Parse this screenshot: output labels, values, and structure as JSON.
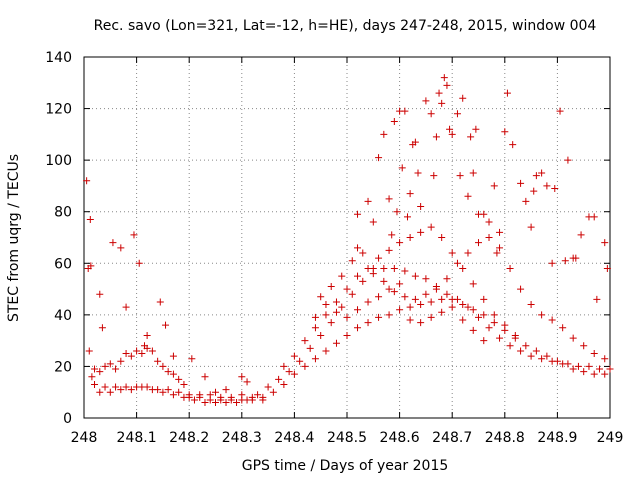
{
  "chart_data": {
    "type": "scatter",
    "title": "Rec. savo (Lon=321, Lat=-12, h=HE), days 247-248, 2015, window 004",
    "xlabel": "GPS time / Days of year 2015",
    "ylabel": "STEC from uqrg / TECUs",
    "xlim": [
      248,
      249
    ],
    "ylim": [
      0,
      140
    ],
    "xticks": [
      "248",
      "248.1",
      "248.2",
      "248.3",
      "248.4",
      "248.5",
      "248.6",
      "248.7",
      "248.8",
      "248.9",
      "249"
    ],
    "yticks": [
      "0",
      "20",
      "40",
      "60",
      "80",
      "100",
      "120",
      "140"
    ],
    "grid": true,
    "marker": "plus",
    "marker_color": "#cc0000",
    "series": [
      {
        "points": [
          [
            248.005,
            92
          ],
          [
            248.008,
            58
          ],
          [
            248.012,
            77
          ],
          [
            248.013,
            59
          ],
          [
            248.03,
            48
          ],
          [
            248.035,
            35
          ],
          [
            248.055,
            68
          ],
          [
            248.07,
            66
          ],
          [
            248.08,
            43
          ],
          [
            248.095,
            71
          ],
          [
            248.105,
            60
          ],
          [
            248.115,
            28
          ],
          [
            248.12,
            32
          ],
          [
            248.145,
            45
          ],
          [
            248.155,
            36
          ],
          [
            248.17,
            24
          ],
          [
            248.205,
            23
          ],
          [
            248.23,
            16
          ],
          [
            248.3,
            16
          ],
          [
            248.31,
            14
          ],
          [
            248.52,
            66
          ],
          [
            248.52,
            79
          ],
          [
            248.54,
            84
          ],
          [
            248.55,
            76
          ],
          [
            248.56,
            101
          ],
          [
            248.57,
            110
          ],
          [
            248.58,
            85
          ],
          [
            248.585,
            71
          ],
          [
            248.59,
            115
          ],
          [
            248.595,
            80
          ],
          [
            248.6,
            119
          ],
          [
            248.605,
            97
          ],
          [
            248.61,
            119
          ],
          [
            248.615,
            78
          ],
          [
            248.62,
            87
          ],
          [
            248.625,
            106
          ],
          [
            248.63,
            107
          ],
          [
            248.635,
            95
          ],
          [
            248.64,
            82
          ],
          [
            248.65,
            123
          ],
          [
            248.66,
            118
          ],
          [
            248.665,
            94
          ],
          [
            248.67,
            109
          ],
          [
            248.675,
            126
          ],
          [
            248.68,
            122
          ],
          [
            248.685,
            132
          ],
          [
            248.69,
            129
          ],
          [
            248.695,
            112
          ],
          [
            248.7,
            110
          ],
          [
            248.71,
            118
          ],
          [
            248.715,
            94
          ],
          [
            248.72,
            124
          ],
          [
            248.73,
            86
          ],
          [
            248.735,
            109
          ],
          [
            248.74,
            95
          ],
          [
            248.745,
            112
          ],
          [
            248.75,
            79
          ],
          [
            248.76,
            79
          ],
          [
            248.77,
            76
          ],
          [
            248.78,
            90
          ],
          [
            248.785,
            64
          ],
          [
            248.79,
            72
          ],
          [
            248.8,
            111
          ],
          [
            248.805,
            126
          ],
          [
            248.815,
            106
          ],
          [
            248.83,
            91
          ],
          [
            248.84,
            84
          ],
          [
            248.85,
            74
          ],
          [
            248.855,
            88
          ],
          [
            248.86,
            94
          ],
          [
            248.87,
            95
          ],
          [
            248.88,
            90
          ],
          [
            248.89,
            60
          ],
          [
            248.895,
            89
          ],
          [
            248.905,
            119
          ],
          [
            248.915,
            61
          ],
          [
            248.92,
            100
          ],
          [
            248.93,
            62
          ],
          [
            248.935,
            62
          ],
          [
            248.945,
            71
          ],
          [
            248.96,
            78
          ],
          [
            248.97,
            78
          ],
          [
            248.975,
            46
          ],
          [
            248.99,
            68
          ],
          [
            248.995,
            58
          ],
          [
            248.01,
            26
          ],
          [
            248.015,
            16
          ],
          [
            248.02,
            19
          ],
          [
            248.03,
            18
          ],
          [
            248.04,
            20
          ],
          [
            248.05,
            21
          ],
          [
            248.06,
            19
          ],
          [
            248.07,
            22
          ],
          [
            248.08,
            25
          ],
          [
            248.09,
            24
          ],
          [
            248.1,
            26
          ],
          [
            248.11,
            25
          ],
          [
            248.12,
            27
          ],
          [
            248.13,
            26
          ],
          [
            248.14,
            22
          ],
          [
            248.15,
            20
          ],
          [
            248.16,
            18
          ],
          [
            248.17,
            17
          ],
          [
            248.18,
            15
          ],
          [
            248.19,
            13
          ],
          [
            248.02,
            13
          ],
          [
            248.04,
            12
          ],
          [
            248.06,
            12
          ],
          [
            248.08,
            12
          ],
          [
            248.1,
            12
          ],
          [
            248.12,
            12
          ],
          [
            248.14,
            11
          ],
          [
            248.16,
            11
          ],
          [
            248.18,
            10
          ],
          [
            248.2,
            9
          ],
          [
            248.22,
            8
          ],
          [
            248.24,
            7
          ],
          [
            248.26,
            7
          ],
          [
            248.28,
            7
          ],
          [
            248.3,
            7
          ],
          [
            248.32,
            7
          ],
          [
            248.34,
            8
          ],
          [
            248.36,
            10
          ],
          [
            248.38,
            13
          ],
          [
            248.4,
            17
          ],
          [
            248.42,
            20
          ],
          [
            248.44,
            23
          ],
          [
            248.46,
            26
          ],
          [
            248.48,
            29
          ],
          [
            248.5,
            32
          ],
          [
            248.52,
            35
          ],
          [
            248.54,
            37
          ],
          [
            248.56,
            39
          ],
          [
            248.58,
            40
          ],
          [
            248.6,
            42
          ],
          [
            248.62,
            43
          ],
          [
            248.64,
            44
          ],
          [
            248.66,
            45
          ],
          [
            248.68,
            46
          ],
          [
            248.7,
            46
          ],
          [
            248.72,
            44
          ],
          [
            248.74,
            42
          ],
          [
            248.76,
            40
          ],
          [
            248.78,
            37
          ],
          [
            248.8,
            34
          ],
          [
            248.82,
            31
          ],
          [
            248.84,
            28
          ],
          [
            248.86,
            26
          ],
          [
            248.88,
            24
          ],
          [
            248.9,
            22
          ],
          [
            248.92,
            21
          ],
          [
            248.94,
            20
          ],
          [
            248.96,
            20
          ],
          [
            248.98,
            19
          ],
          [
            249.0,
            19
          ],
          [
            248.03,
            10
          ],
          [
            248.05,
            10
          ],
          [
            248.07,
            11
          ],
          [
            248.09,
            11
          ],
          [
            248.11,
            12
          ],
          [
            248.13,
            11
          ],
          [
            248.15,
            10
          ],
          [
            248.17,
            9
          ],
          [
            248.19,
            8
          ],
          [
            248.21,
            7
          ],
          [
            248.23,
            6
          ],
          [
            248.25,
            6
          ],
          [
            248.27,
            6
          ],
          [
            248.29,
            6
          ],
          [
            248.31,
            7
          ],
          [
            248.33,
            9
          ],
          [
            248.35,
            12
          ],
          [
            248.37,
            15
          ],
          [
            248.39,
            18
          ],
          [
            248.41,
            22
          ],
          [
            248.43,
            27
          ],
          [
            248.45,
            32
          ],
          [
            248.47,
            37
          ],
          [
            248.49,
            43
          ],
          [
            248.51,
            48
          ],
          [
            248.53,
            53
          ],
          [
            248.55,
            56
          ],
          [
            248.57,
            58
          ],
          [
            248.59,
            58
          ],
          [
            248.61,
            57
          ],
          [
            248.63,
            55
          ],
          [
            248.65,
            54
          ],
          [
            248.67,
            51
          ],
          [
            248.69,
            48
          ],
          [
            248.71,
            46
          ],
          [
            248.73,
            43
          ],
          [
            248.75,
            39
          ],
          [
            248.77,
            35
          ],
          [
            248.79,
            31
          ],
          [
            248.81,
            28
          ],
          [
            248.83,
            26
          ],
          [
            248.85,
            24
          ],
          [
            248.87,
            23
          ],
          [
            248.89,
            22
          ],
          [
            248.91,
            21
          ],
          [
            248.93,
            19
          ],
          [
            248.95,
            18
          ],
          [
            248.97,
            17
          ],
          [
            248.99,
            17
          ],
          [
            248.44,
            35
          ],
          [
            248.46,
            40
          ],
          [
            248.48,
            45
          ],
          [
            248.5,
            50
          ],
          [
            248.52,
            55
          ],
          [
            248.54,
            58
          ],
          [
            248.56,
            62
          ],
          [
            248.58,
            65
          ],
          [
            248.6,
            68
          ],
          [
            248.62,
            70
          ],
          [
            248.64,
            72
          ],
          [
            248.66,
            74
          ],
          [
            248.68,
            70
          ],
          [
            248.7,
            64
          ],
          [
            248.72,
            58
          ],
          [
            248.74,
            52
          ],
          [
            248.76,
            46
          ],
          [
            248.78,
            40
          ],
          [
            248.8,
            36
          ],
          [
            248.82,
            32
          ],
          [
            248.45,
            47
          ],
          [
            248.47,
            51
          ],
          [
            248.49,
            55
          ],
          [
            248.51,
            61
          ],
          [
            248.53,
            64
          ],
          [
            248.55,
            58
          ],
          [
            248.57,
            53
          ],
          [
            248.59,
            49
          ],
          [
            248.61,
            47
          ],
          [
            248.63,
            46
          ],
          [
            248.65,
            48
          ],
          [
            248.67,
            50
          ],
          [
            248.69,
            54
          ],
          [
            248.71,
            60
          ],
          [
            248.73,
            64
          ],
          [
            248.75,
            68
          ],
          [
            248.77,
            70
          ],
          [
            248.79,
            66
          ],
          [
            248.81,
            58
          ],
          [
            248.83,
            50
          ],
          [
            248.85,
            44
          ],
          [
            248.87,
            40
          ],
          [
            248.89,
            38
          ],
          [
            248.91,
            35
          ],
          [
            248.93,
            31
          ],
          [
            248.95,
            28
          ],
          [
            248.97,
            25
          ],
          [
            248.99,
            23
          ],
          [
            248.38,
            20
          ],
          [
            248.4,
            24
          ],
          [
            248.42,
            30
          ],
          [
            248.44,
            39
          ],
          [
            248.46,
            44
          ],
          [
            248.48,
            41
          ],
          [
            248.5,
            39
          ],
          [
            248.52,
            42
          ],
          [
            248.54,
            45
          ],
          [
            248.56,
            47
          ],
          [
            248.58,
            50
          ],
          [
            248.6,
            52
          ],
          [
            248.62,
            38
          ],
          [
            248.64,
            37
          ],
          [
            248.66,
            39
          ],
          [
            248.68,
            41
          ],
          [
            248.7,
            43
          ],
          [
            248.72,
            38
          ],
          [
            248.74,
            34
          ],
          [
            248.76,
            30
          ],
          [
            248.2,
            8
          ],
          [
            248.22,
            9
          ],
          [
            248.24,
            9
          ],
          [
            248.26,
            8
          ],
          [
            248.28,
            8
          ],
          [
            248.3,
            9
          ],
          [
            248.32,
            8
          ],
          [
            248.34,
            7
          ],
          [
            248.25,
            10
          ],
          [
            248.27,
            11
          ]
        ]
      }
    ]
  }
}
